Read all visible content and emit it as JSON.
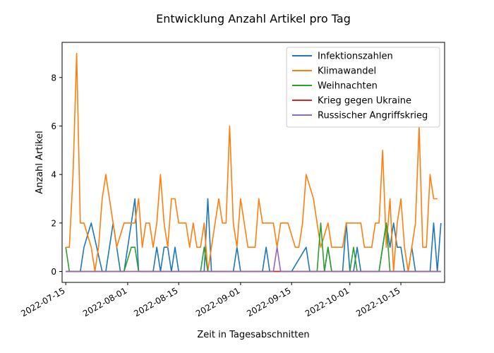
{
  "chart_data": {
    "type": "line",
    "title": "Entwicklung Anzahl Artikel pro Tag",
    "xlabel": "Zeit in Tagesabschnitten",
    "ylabel": "Anzahl Artikel",
    "xlim": [
      "2022-07-14",
      "2022-10-27"
    ],
    "ylim": [
      -0.45,
      9.45
    ],
    "x_ticks": [
      "2022-07-15",
      "2022-08-01",
      "2022-08-15",
      "2022-09-01",
      "2022-09-15",
      "2022-10-01",
      "2022-10-15"
    ],
    "y_ticks": [
      0,
      2,
      4,
      6,
      8
    ],
    "legend_position": "top-right",
    "grid": false,
    "series": [
      {
        "name": "Infektionszahlen",
        "color": "#1f77b4",
        "points": [
          [
            "2022-07-15",
            0
          ],
          [
            "2022-07-19",
            0
          ],
          [
            "2022-07-20",
            1
          ],
          [
            "2022-07-21",
            1.5
          ],
          [
            "2022-07-22",
            2
          ],
          [
            "2022-07-25",
            0
          ],
          [
            "2022-07-26",
            0
          ],
          [
            "2022-07-28",
            2
          ],
          [
            "2022-07-29",
            1
          ],
          [
            "2022-07-30",
            0
          ],
          [
            "2022-07-31",
            0
          ],
          [
            "2022-08-02",
            2
          ],
          [
            "2022-08-03",
            3
          ],
          [
            "2022-08-04",
            0
          ],
          [
            "2022-08-08",
            0
          ],
          [
            "2022-08-09",
            1
          ],
          [
            "2022-08-10",
            0
          ],
          [
            "2022-08-11",
            1
          ],
          [
            "2022-08-12",
            1
          ],
          [
            "2022-08-13",
            0
          ],
          [
            "2022-08-14",
            1
          ],
          [
            "2022-08-15",
            0
          ],
          [
            "2022-08-22",
            0
          ],
          [
            "2022-08-23",
            3
          ],
          [
            "2022-08-24",
            0
          ],
          [
            "2022-08-30",
            0
          ],
          [
            "2022-08-31",
            1
          ],
          [
            "2022-09-01",
            0
          ],
          [
            "2022-09-07",
            0
          ],
          [
            "2022-09-08",
            1
          ],
          [
            "2022-09-09",
            0
          ],
          [
            "2022-09-15",
            0
          ],
          [
            "2022-09-19",
            1
          ],
          [
            "2022-09-20",
            0
          ],
          [
            "2022-09-24",
            0
          ],
          [
            "2022-09-25",
            1
          ],
          [
            "2022-09-26",
            0
          ],
          [
            "2022-09-29",
            0
          ],
          [
            "2022-09-30",
            2
          ],
          [
            "2022-10-01",
            0
          ],
          [
            "2022-10-02",
            0
          ],
          [
            "2022-10-03",
            1
          ],
          [
            "2022-10-04",
            0
          ],
          [
            "2022-10-09",
            0
          ],
          [
            "2022-10-10",
            1
          ],
          [
            "2022-10-11",
            2
          ],
          [
            "2022-10-12",
            1
          ],
          [
            "2022-10-13",
            2
          ],
          [
            "2022-10-14",
            1
          ],
          [
            "2022-10-15",
            1
          ],
          [
            "2022-10-16",
            0
          ],
          [
            "2022-10-17",
            0
          ],
          [
            "2022-10-18",
            1
          ],
          [
            "2022-10-19",
            0
          ],
          [
            "2022-10-23",
            0
          ],
          [
            "2022-10-24",
            2
          ],
          [
            "2022-10-25",
            0
          ],
          [
            "2022-10-26",
            2
          ]
        ]
      },
      {
        "name": "Klimawandel",
        "color": "#ff7f0e",
        "points": [
          [
            "2022-07-15",
            1
          ],
          [
            "2022-07-16",
            1
          ],
          [
            "2022-07-17",
            4
          ],
          [
            "2022-07-18",
            9
          ],
          [
            "2022-07-19",
            2
          ],
          [
            "2022-07-20",
            2
          ],
          [
            "2022-07-21",
            1.5
          ],
          [
            "2022-07-22",
            1
          ],
          [
            "2022-07-23",
            0
          ],
          [
            "2022-07-24",
            1
          ],
          [
            "2022-07-25",
            3
          ],
          [
            "2022-07-26",
            4
          ],
          [
            "2022-07-28",
            2
          ],
          [
            "2022-07-29",
            1
          ],
          [
            "2022-07-30",
            1.5
          ],
          [
            "2022-07-31",
            2
          ],
          [
            "2022-08-02",
            2
          ],
          [
            "2022-08-03",
            2
          ],
          [
            "2022-08-04",
            3
          ],
          [
            "2022-08-05",
            1
          ],
          [
            "2022-08-06",
            2
          ],
          [
            "2022-08-07",
            2
          ],
          [
            "2022-08-08",
            1
          ],
          [
            "2022-08-09",
            2
          ],
          [
            "2022-08-10",
            4
          ],
          [
            "2022-08-11",
            2
          ],
          [
            "2022-08-12",
            1
          ],
          [
            "2022-08-13",
            3
          ],
          [
            "2022-08-14",
            3
          ],
          [
            "2022-08-15",
            2
          ],
          [
            "2022-08-16",
            2
          ],
          [
            "2022-08-17",
            2
          ],
          [
            "2022-08-18",
            1
          ],
          [
            "2022-08-19",
            2
          ],
          [
            "2022-08-20",
            1
          ],
          [
            "2022-08-21",
            1
          ],
          [
            "2022-08-22",
            2
          ],
          [
            "2022-08-23",
            0
          ],
          [
            "2022-08-24",
            1
          ],
          [
            "2022-08-26",
            3
          ],
          [
            "2022-08-27",
            2
          ],
          [
            "2022-08-28",
            2
          ],
          [
            "2022-08-29",
            6
          ],
          [
            "2022-08-30",
            2
          ],
          [
            "2022-08-31",
            1
          ],
          [
            "2022-09-01",
            3
          ],
          [
            "2022-09-02",
            2
          ],
          [
            "2022-09-03",
            1
          ],
          [
            "2022-09-04",
            1
          ],
          [
            "2022-09-05",
            1
          ],
          [
            "2022-09-06",
            3
          ],
          [
            "2022-09-07",
            2
          ],
          [
            "2022-09-08",
            2
          ],
          [
            "2022-09-09",
            2
          ],
          [
            "2022-09-10",
            2
          ],
          [
            "2022-09-11",
            1
          ],
          [
            "2022-09-12",
            2
          ],
          [
            "2022-09-13",
            2
          ],
          [
            "2022-09-14",
            2
          ],
          [
            "2022-09-15",
            1.5
          ],
          [
            "2022-09-16",
            1
          ],
          [
            "2022-09-17",
            1
          ],
          [
            "2022-09-18",
            2
          ],
          [
            "2022-09-19",
            4
          ],
          [
            "2022-09-20",
            3.5
          ],
          [
            "2022-09-21",
            3
          ],
          [
            "2022-09-22",
            2
          ],
          [
            "2022-09-23",
            1
          ],
          [
            "2022-09-24",
            1.5
          ],
          [
            "2022-09-25",
            2
          ],
          [
            "2022-09-26",
            1
          ],
          [
            "2022-09-27",
            1
          ],
          [
            "2022-09-28",
            1
          ],
          [
            "2022-09-29",
            1
          ],
          [
            "2022-09-30",
            2
          ],
          [
            "2022-10-01",
            2
          ],
          [
            "2022-10-02",
            2
          ],
          [
            "2022-10-03",
            2
          ],
          [
            "2022-10-04",
            2
          ],
          [
            "2022-10-05",
            1
          ],
          [
            "2022-10-06",
            1
          ],
          [
            "2022-10-07",
            1
          ],
          [
            "2022-10-08",
            2
          ],
          [
            "2022-10-09",
            2
          ],
          [
            "2022-10-10",
            5
          ],
          [
            "2022-10-11",
            1
          ],
          [
            "2022-10-12",
            3
          ],
          [
            "2022-10-13",
            0
          ],
          [
            "2022-10-14",
            2
          ],
          [
            "2022-10-15",
            3
          ],
          [
            "2022-10-16",
            1
          ],
          [
            "2022-10-17",
            0
          ],
          [
            "2022-10-18",
            1
          ],
          [
            "2022-10-19",
            2
          ],
          [
            "2022-10-20",
            6
          ],
          [
            "2022-10-21",
            1
          ],
          [
            "2022-10-22",
            1
          ],
          [
            "2022-10-23",
            4
          ],
          [
            "2022-10-24",
            3
          ],
          [
            "2022-10-25",
            3
          ]
        ]
      },
      {
        "name": "Weihnachten",
        "color": "#2ca02c",
        "points": [
          [
            "2022-07-15",
            1
          ],
          [
            "2022-07-16",
            0
          ],
          [
            "2022-07-30",
            0
          ],
          [
            "2022-07-31",
            0
          ],
          [
            "2022-08-02",
            1
          ],
          [
            "2022-08-03",
            1
          ],
          [
            "2022-08-04",
            0
          ],
          [
            "2022-08-21",
            0
          ],
          [
            "2022-08-22",
            1
          ],
          [
            "2022-08-23",
            0
          ],
          [
            "2022-09-22",
            0
          ],
          [
            "2022-09-23",
            2
          ],
          [
            "2022-09-24",
            0
          ],
          [
            "2022-09-25",
            1
          ],
          [
            "2022-09-26",
            0
          ],
          [
            "2022-10-01",
            0
          ],
          [
            "2022-10-02",
            1
          ],
          [
            "2022-10-03",
            0
          ],
          [
            "2022-10-09",
            0
          ],
          [
            "2022-10-10",
            1
          ],
          [
            "2022-10-11",
            2
          ],
          [
            "2022-10-12",
            0
          ],
          [
            "2022-10-26",
            0
          ]
        ]
      },
      {
        "name": "Krieg gegen Ukraine",
        "color": "#d62728",
        "points": [
          [
            "2022-07-15",
            0
          ],
          [
            "2022-10-26",
            0
          ]
        ]
      },
      {
        "name": "Russischer Angriffskrieg",
        "color": "#9467bd",
        "points": [
          [
            "2022-07-15",
            0
          ],
          [
            "2022-09-10",
            0
          ],
          [
            "2022-09-11",
            1
          ],
          [
            "2022-09-12",
            0
          ],
          [
            "2022-10-26",
            0
          ]
        ]
      }
    ]
  }
}
